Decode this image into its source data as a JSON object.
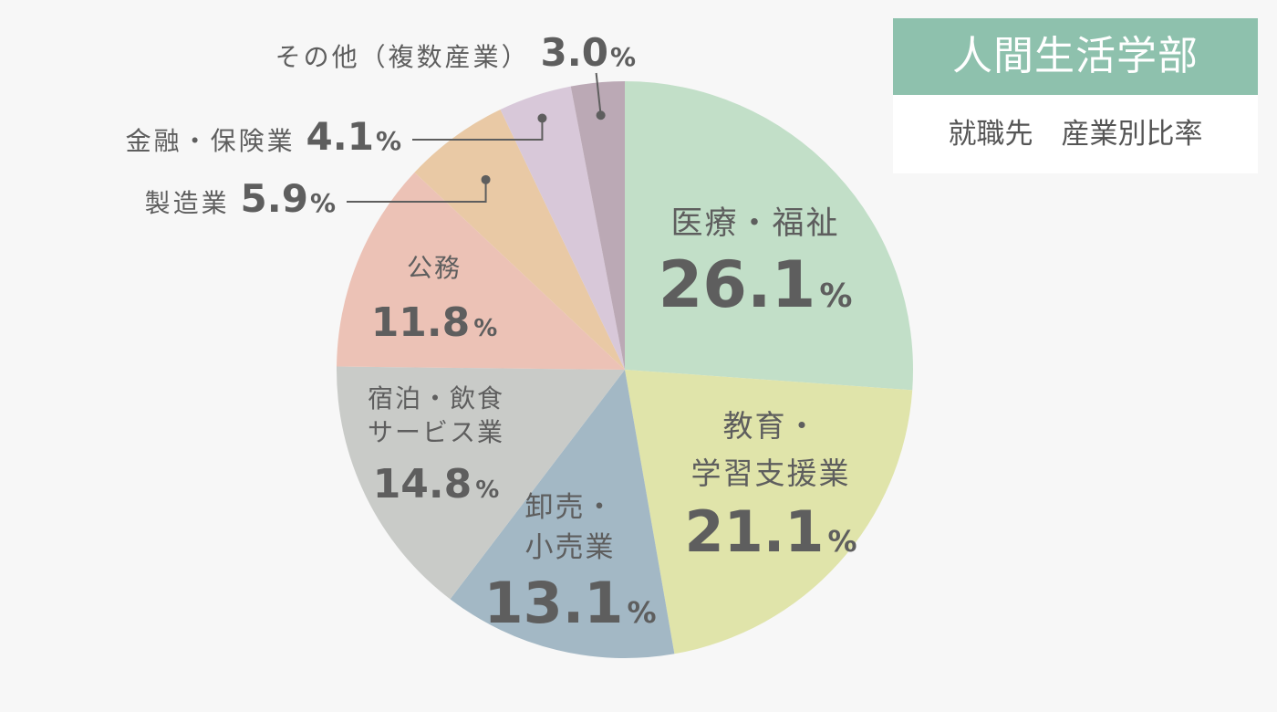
{
  "title": {
    "main": "人間生活学部",
    "subtitle": "就職先　産業別比率"
  },
  "chart_data": {
    "type": "pie",
    "unit": "%",
    "start_angle_deg": 0,
    "direction": "clockwise",
    "slices": [
      {
        "label_lines": [
          "医療・福祉"
        ],
        "value": 26.1,
        "value_text": "26.1",
        "color": "#c2dfc8"
      },
      {
        "label_lines": [
          "教育・",
          "学習支援業"
        ],
        "value": 21.1,
        "value_text": "21.1",
        "color": "#e0e4aa"
      },
      {
        "label_lines": [
          "卸売・",
          "小売業"
        ],
        "value": 13.1,
        "value_text": "13.1",
        "color": "#a3b8c5"
      },
      {
        "label_lines": [
          "宿泊・飲食",
          "サービス業"
        ],
        "value": 14.8,
        "value_text": "14.8",
        "color": "#c9cbc8"
      },
      {
        "label_lines": [
          "公務"
        ],
        "value": 11.8,
        "value_text": "11.8",
        "color": "#ecc2b6"
      },
      {
        "label_lines": [
          "製造業"
        ],
        "value": 5.9,
        "value_text": "5.9",
        "color": "#e9c9a5"
      },
      {
        "label_lines": [
          "金融・保険業"
        ],
        "value": 4.1,
        "value_text": "4.1",
        "color": "#d8c8d9"
      },
      {
        "label_lines": [
          "その他（複数産業）"
        ],
        "value": 3.0,
        "value_text": "3.0",
        "color": "#bba9b5"
      }
    ]
  }
}
